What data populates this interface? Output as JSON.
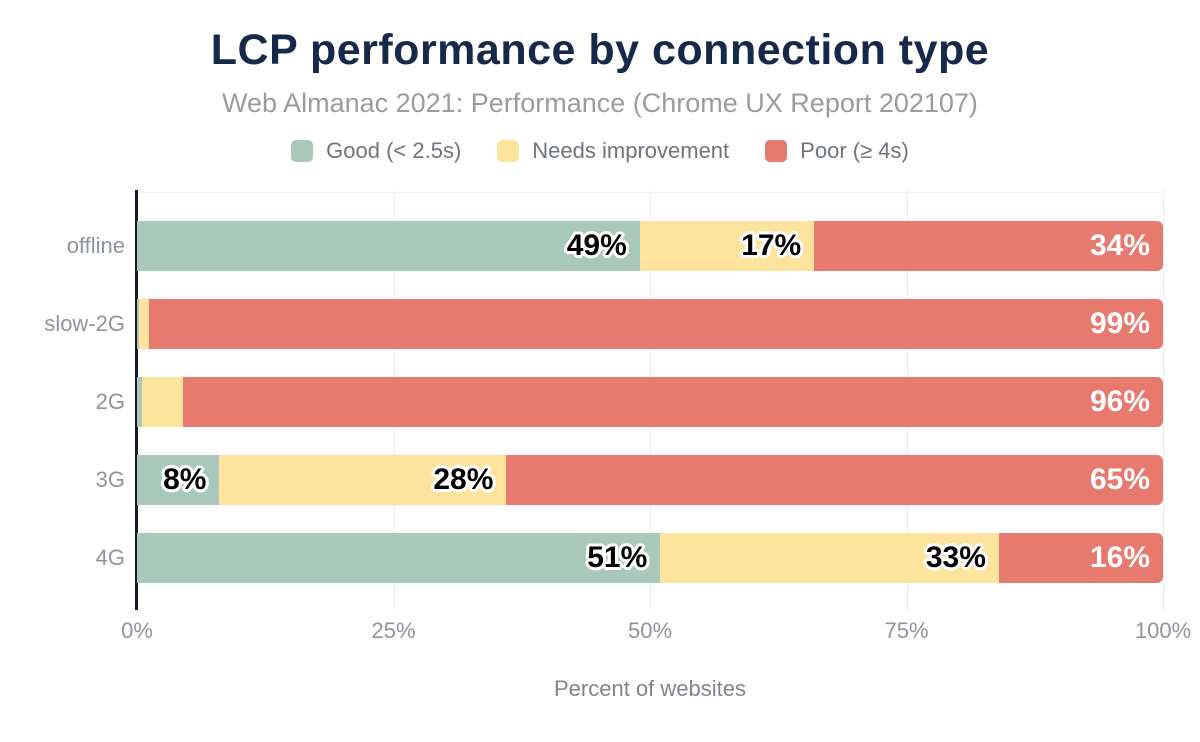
{
  "chart_data": {
    "type": "bar",
    "stacked": true,
    "orientation": "horizontal",
    "title": "LCP performance by connection type",
    "subtitle": "Web Almanac 2021: Performance (Chrome UX Report 202107)",
    "categories": [
      "offline",
      "slow-2G",
      "2G",
      "3G",
      "4G"
    ],
    "series": [
      {
        "name": "Good (< 2.5s)",
        "key": "good",
        "color": "#a8c9ba",
        "label_style": "dark",
        "values": [
          49,
          0,
          0,
          8,
          51
        ]
      },
      {
        "name": "Needs improvement",
        "key": "needs-improvement",
        "color": "#fde39c",
        "label_style": "dark",
        "values": [
          17,
          1,
          4,
          28,
          33
        ]
      },
      {
        "name": "Poor (≥ 4s)",
        "key": "poor",
        "color": "#e8796f",
        "label_style": "light",
        "values": [
          34,
          99,
          96,
          65,
          16
        ]
      }
    ],
    "render_widths": [
      [
        49,
        17,
        34
      ],
      [
        0.15,
        1,
        98.85
      ],
      [
        0.45,
        4,
        95.55
      ],
      [
        8,
        28,
        64
      ],
      [
        51,
        33,
        16
      ]
    ],
    "xlabel": "Percent of websites",
    "xlim": [
      0,
      100
    ],
    "x_ticks": [
      {
        "value": 0,
        "label": "0%"
      },
      {
        "value": 25,
        "label": "25%"
      },
      {
        "value": 50,
        "label": "50%"
      },
      {
        "value": 75,
        "label": "75%"
      },
      {
        "value": 100,
        "label": "100%"
      }
    ],
    "grid": "vertical",
    "legend_position": "top"
  },
  "colors": {
    "title": "#16294b",
    "subtitle": "#9b9b9b",
    "legend_text": "#6f747b",
    "axis_text": "#8f949c",
    "gridline": "#ececec",
    "axis_line": "#171b26",
    "background": "#ffffff",
    "label_dark": "#000000",
    "label_light": "#ffffff"
  }
}
